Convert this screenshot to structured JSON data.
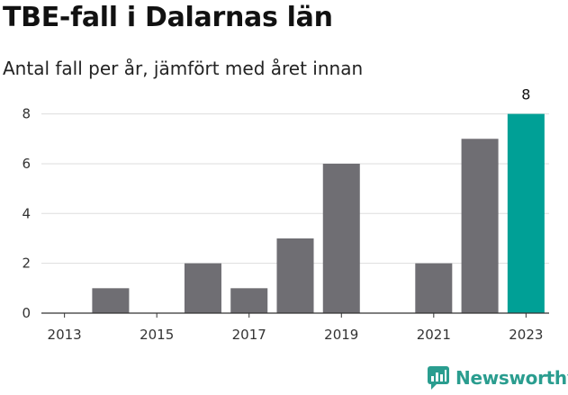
{
  "header": {
    "title": "TBE-fall i Dalarnas län",
    "subtitle": "Antal fall per år, jämfört med året innan"
  },
  "brand": {
    "name": "Newsworthy",
    "color": "#2a9d8f",
    "icon": "newsworthy-logo-icon"
  },
  "chart_data": {
    "type": "bar",
    "categories": [
      "2013",
      "2014",
      "2015",
      "2016",
      "2017",
      "2018",
      "2019",
      "2020",
      "2021",
      "2022",
      "2023"
    ],
    "values": [
      0,
      1,
      0,
      2,
      1,
      3,
      6,
      0,
      2,
      7,
      8
    ],
    "x_tick_labels": [
      "2013",
      "2015",
      "2017",
      "2019",
      "2021",
      "2023"
    ],
    "y_ticks": [
      0,
      2,
      4,
      6,
      8
    ],
    "ylim": [
      0,
      8.6
    ],
    "grid": true,
    "highlight_category": "2023",
    "highlight_label": "8",
    "colors": {
      "bar": "#6f6e73",
      "highlight": "#00a096",
      "grid": "#dddddd",
      "axis": "#333333"
    },
    "xlabel": "",
    "ylabel": ""
  }
}
